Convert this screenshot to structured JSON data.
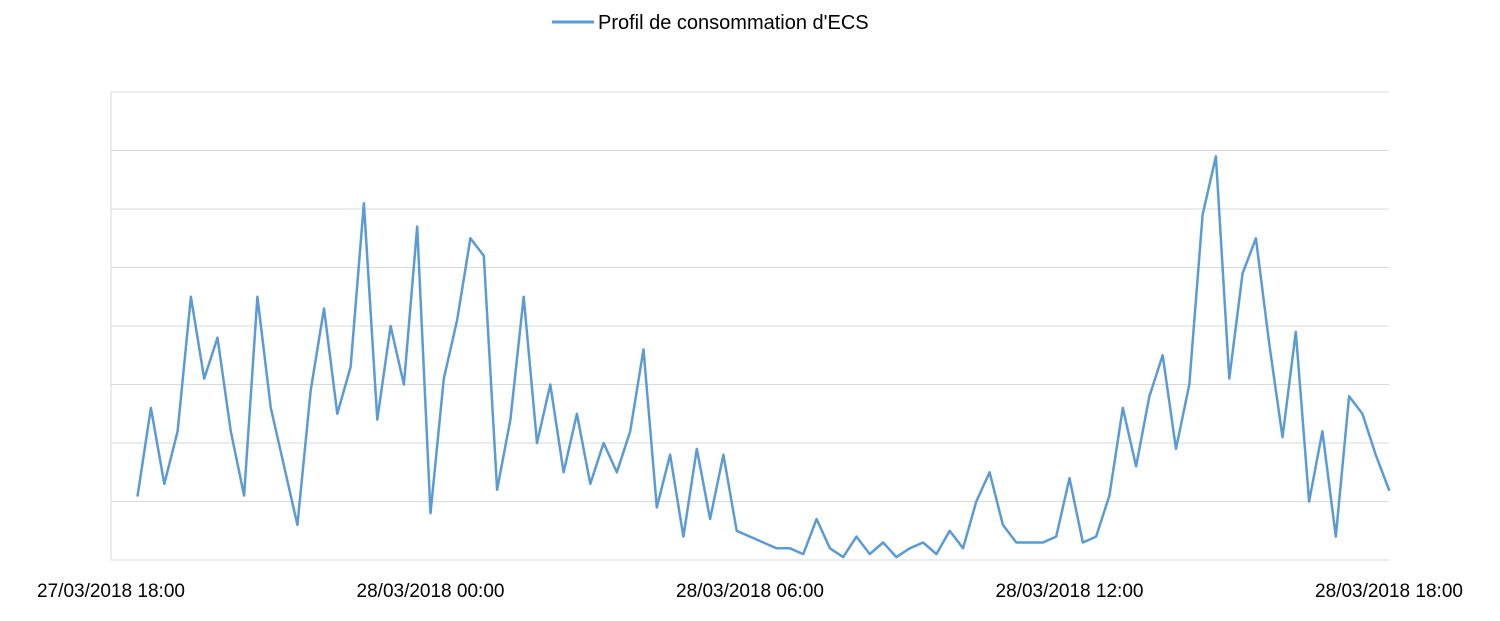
{
  "chart_data": {
    "type": "line",
    "title": "",
    "xlabel": "",
    "ylabel": "",
    "legend": {
      "position": "top-center",
      "entries": [
        "Profil de consommation d'ECS"
      ]
    },
    "grid": {
      "horizontal": true,
      "vertical": false
    },
    "y_tick_labels_shown": false,
    "ylim": [
      0,
      8
    ],
    "xlim": [
      "27/03/2018 18:00",
      "28/03/2018 18:00"
    ],
    "x_ticks": [
      "27/03/2018 18:00",
      "28/03/2018 00:00",
      "28/03/2018 06:00",
      "28/03/2018 12:00",
      "28/03/2018 18:00"
    ],
    "series": [
      {
        "name": "Profil de consommation d'ECS",
        "color": "#5B9BD5",
        "points": [
          [
            "27/03/2018 18:30",
            1.1
          ],
          [
            "27/03/2018 18:45",
            2.6
          ],
          [
            "27/03/2018 19:00",
            1.3
          ],
          [
            "27/03/2018 19:15",
            2.2
          ],
          [
            "27/03/2018 19:30",
            4.5
          ],
          [
            "27/03/2018 19:45",
            3.1
          ],
          [
            "27/03/2018 20:00",
            3.8
          ],
          [
            "27/03/2018 20:15",
            2.2
          ],
          [
            "27/03/2018 20:30",
            1.1
          ],
          [
            "27/03/2018 20:45",
            4.5
          ],
          [
            "27/03/2018 21:00",
            2.6
          ],
          [
            "27/03/2018 21:15",
            1.6
          ],
          [
            "27/03/2018 21:30",
            0.6
          ],
          [
            "27/03/2018 21:45",
            2.9
          ],
          [
            "27/03/2018 22:00",
            4.3
          ],
          [
            "27/03/2018 22:15",
            2.5
          ],
          [
            "27/03/2018 22:30",
            3.3
          ],
          [
            "27/03/2018 22:45",
            6.1
          ],
          [
            "27/03/2018 23:00",
            2.4
          ],
          [
            "27/03/2018 23:15",
            4.0
          ],
          [
            "27/03/2018 23:30",
            3.0
          ],
          [
            "27/03/2018 23:45",
            5.7
          ],
          [
            "28/03/2018 00:00",
            0.8
          ],
          [
            "28/03/2018 00:15",
            3.1
          ],
          [
            "28/03/2018 00:30",
            4.1
          ],
          [
            "28/03/2018 00:45",
            5.5
          ],
          [
            "28/03/2018 01:00",
            5.2
          ],
          [
            "28/03/2018 01:15",
            1.2
          ],
          [
            "28/03/2018 01:30",
            2.4
          ],
          [
            "28/03/2018 01:45",
            4.5
          ],
          [
            "28/03/2018 02:00",
            2.0
          ],
          [
            "28/03/2018 02:15",
            3.0
          ],
          [
            "28/03/2018 02:30",
            1.5
          ],
          [
            "28/03/2018 02:45",
            2.5
          ],
          [
            "28/03/2018 03:00",
            1.3
          ],
          [
            "28/03/2018 03:15",
            2.0
          ],
          [
            "28/03/2018 03:30",
            1.5
          ],
          [
            "28/03/2018 03:45",
            2.2
          ],
          [
            "28/03/2018 04:00",
            3.6
          ],
          [
            "28/03/2018 04:15",
            0.9
          ],
          [
            "28/03/2018 04:30",
            1.8
          ],
          [
            "28/03/2018 04:45",
            0.4
          ],
          [
            "28/03/2018 05:00",
            1.9
          ],
          [
            "28/03/2018 05:15",
            0.7
          ],
          [
            "28/03/2018 05:30",
            1.8
          ],
          [
            "28/03/2018 05:45",
            0.5
          ],
          [
            "28/03/2018 06:00",
            0.4
          ],
          [
            "28/03/2018 06:15",
            0.3
          ],
          [
            "28/03/2018 06:30",
            0.2
          ],
          [
            "28/03/2018 06:45",
            0.2
          ],
          [
            "28/03/2018 07:00",
            0.1
          ],
          [
            "28/03/2018 07:15",
            0.7
          ],
          [
            "28/03/2018 07:30",
            0.2
          ],
          [
            "28/03/2018 07:45",
            0.05
          ],
          [
            "28/03/2018 08:00",
            0.4
          ],
          [
            "28/03/2018 08:15",
            0.1
          ],
          [
            "28/03/2018 08:30",
            0.3
          ],
          [
            "28/03/2018 08:45",
            0.05
          ],
          [
            "28/03/2018 09:00",
            0.2
          ],
          [
            "28/03/2018 09:15",
            0.3
          ],
          [
            "28/03/2018 09:30",
            0.1
          ],
          [
            "28/03/2018 09:45",
            0.5
          ],
          [
            "28/03/2018 10:00",
            0.2
          ],
          [
            "28/03/2018 10:15",
            1.0
          ],
          [
            "28/03/2018 10:30",
            1.5
          ],
          [
            "28/03/2018 10:45",
            0.6
          ],
          [
            "28/03/2018 11:00",
            0.3
          ],
          [
            "28/03/2018 11:15",
            0.3
          ],
          [
            "28/03/2018 11:30",
            0.3
          ],
          [
            "28/03/2018 11:45",
            0.4
          ],
          [
            "28/03/2018 12:00",
            1.4
          ],
          [
            "28/03/2018 12:15",
            0.3
          ],
          [
            "28/03/2018 12:30",
            0.4
          ],
          [
            "28/03/2018 12:45",
            1.1
          ],
          [
            "28/03/2018 13:00",
            2.6
          ],
          [
            "28/03/2018 13:15",
            1.6
          ],
          [
            "28/03/2018 13:30",
            2.8
          ],
          [
            "28/03/2018 13:45",
            3.5
          ],
          [
            "28/03/2018 14:00",
            1.9
          ],
          [
            "28/03/2018 14:15",
            3.0
          ],
          [
            "28/03/2018 14:30",
            5.9
          ],
          [
            "28/03/2018 14:45",
            6.9
          ],
          [
            "28/03/2018 15:00",
            3.1
          ],
          [
            "28/03/2018 15:15",
            4.9
          ],
          [
            "28/03/2018 15:30",
            5.5
          ],
          [
            "28/03/2018 15:45",
            3.7
          ],
          [
            "28/03/2018 16:00",
            2.1
          ],
          [
            "28/03/2018 16:15",
            3.9
          ],
          [
            "28/03/2018 16:30",
            1.0
          ],
          [
            "28/03/2018 16:45",
            2.2
          ],
          [
            "28/03/2018 17:00",
            0.4
          ],
          [
            "28/03/2018 17:15",
            2.8
          ],
          [
            "28/03/2018 17:30",
            2.5
          ],
          [
            "28/03/2018 17:45",
            1.8
          ],
          [
            "28/03/2018 18:00",
            1.2
          ]
        ]
      }
    ]
  }
}
